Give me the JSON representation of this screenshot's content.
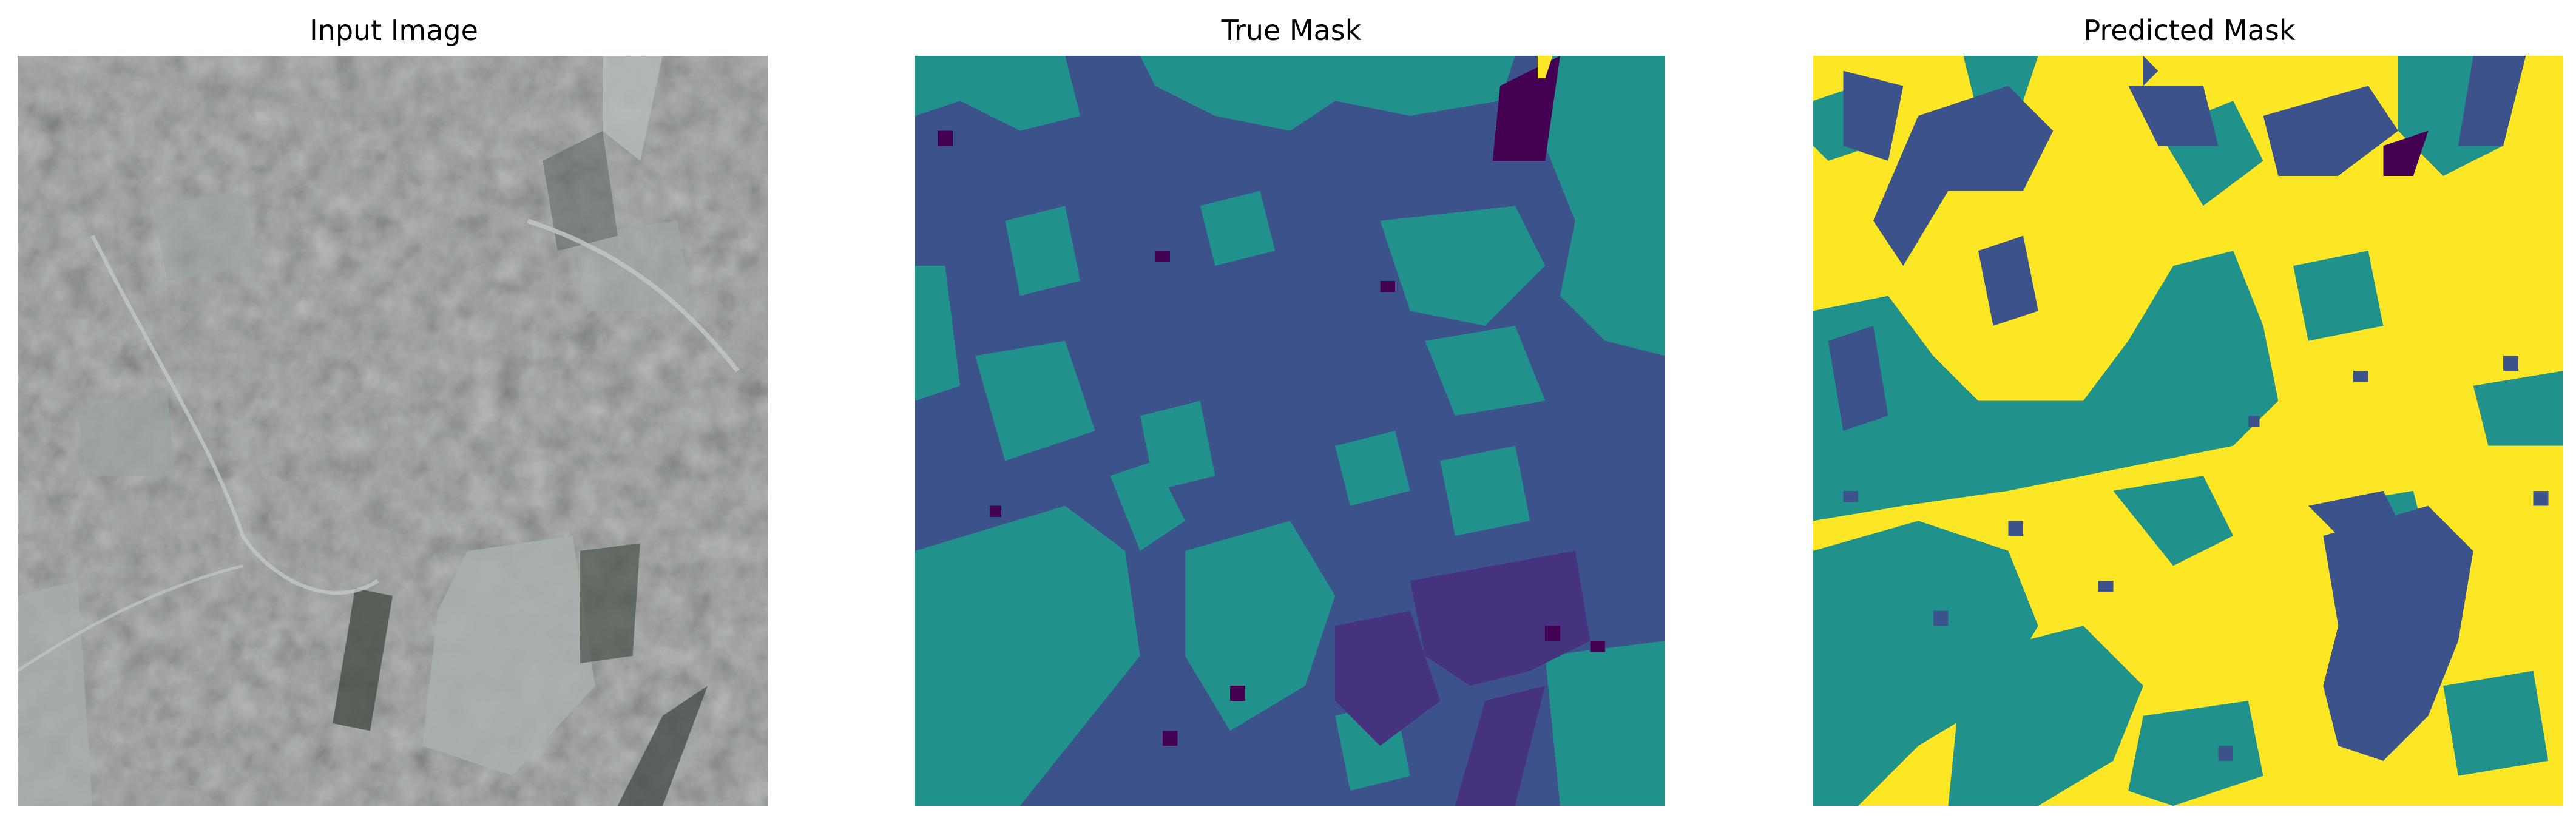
{
  "panels": [
    {
      "title": "Input Image"
    },
    {
      "title": "True Mask"
    },
    {
      "title": "Predicted Mask"
    }
  ],
  "colors": {
    "viridis_0": "#440154",
    "viridis_1": "#3b528b",
    "viridis_2": "#21918c",
    "viridis_3": "#fde725",
    "viridis_dark": "#46337e"
  }
}
